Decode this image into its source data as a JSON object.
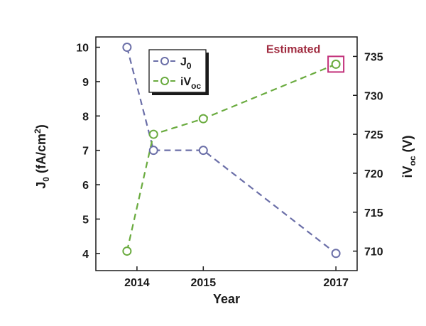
{
  "colors": {
    "j0": "#6b6fa8",
    "ivoc": "#6aab3f",
    "axis": "#1a1a1a",
    "annotation_text": "#a02b3f",
    "annotation_box": "#c2307a"
  },
  "chart_data": {
    "type": "line",
    "xlabel": "Year",
    "ylabel_left": {
      "main": "J",
      "sub": "0",
      "unit_pre": " (fA/cm",
      "sup": "2",
      "unit_post": ")"
    },
    "ylabel_right": {
      "main": "iV",
      "sub": "oc",
      "unit": " (V)"
    },
    "x_ticks": [
      {
        "value": 2014,
        "label": "2014"
      },
      {
        "value": 2015,
        "label": "2015"
      },
      {
        "value": 2017,
        "label": "2017"
      }
    ],
    "xlim": [
      2013.38,
      2017.32
    ],
    "ylim_left": [
      3.5,
      10.3
    ],
    "yticks_left": [
      4,
      5,
      6,
      7,
      8,
      9,
      10
    ],
    "ylim_right": [
      707.5,
      737.5
    ],
    "yticks_right": [
      710,
      715,
      720,
      725,
      730,
      735
    ],
    "series": [
      {
        "name_main": "J",
        "name_sub": "0",
        "axis": "left",
        "x": [
          2013.85,
          2014.25,
          2015.0,
          2017.0
        ],
        "y": [
          10.0,
          7.0,
          7.0,
          4.0
        ]
      },
      {
        "name_main": "iV",
        "name_sub": "oc",
        "axis": "right",
        "x": [
          2013.85,
          2014.25,
          2015.0,
          2017.0
        ],
        "y": [
          710.0,
          725.0,
          727.0,
          734.0
        ]
      }
    ],
    "annotation": {
      "text": "Estimated",
      "series_index": 1,
      "point_index": 3
    },
    "legend_position": "top-left",
    "grid": false
  }
}
